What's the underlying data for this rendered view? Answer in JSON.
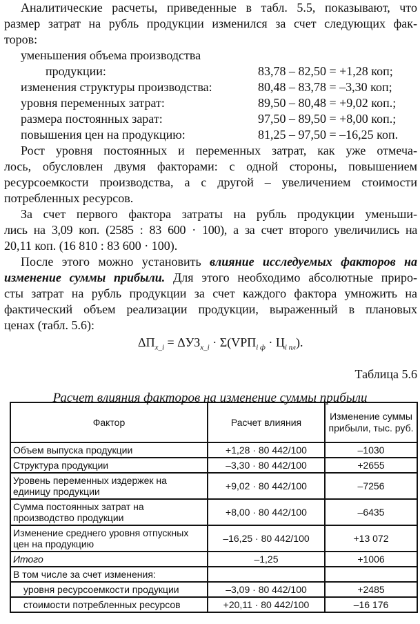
{
  "text": {
    "l1": "Аналитические расчеты, приведенные в табл. 5.5, показывают, что",
    "l2": "размер затрат на рубль продукции изменился за счет следующих фак-",
    "l3": "торов:",
    "factors": [
      {
        "label": "уменьшения объема производства",
        "label2": "продукции:",
        "calc": "83,78 – 82,50 = +1,28 коп;"
      },
      {
        "label": "изменения структуры производства:",
        "calc": "80,48 – 83,78 = –3,30 коп;"
      },
      {
        "label": "уровня переменных затрат:",
        "calc": "89,50 – 80,48 = +9,02 коп.;"
      },
      {
        "label": "размера постоянных зарат:",
        "calc": "97,50 – 89,50 = +8,00 коп.;"
      },
      {
        "label": "повышения цен на продукцию:",
        "calc": "81,25 – 97,50 = –16,25 коп."
      }
    ],
    "l10": "Рост уровня постоянных и переменных затрат, как уже отмеча-",
    "l11": "лось, обусловлен двумя факторами: с одной стороны, повышением",
    "l12": "ресурсоемкости производства, а с другой – увеличением стоимости",
    "l13": "потребленных ресурсов.",
    "l14": "За счет первого фактора затраты на рубль продукции уменьши-",
    "l15": "лись на 3,09 коп. (2585 : 83 600 · 100), а за счет второго увеличились на",
    "l16": "20,11 коп. (16 810 : 83 600 · 100).",
    "l17a": "После этого можно установить ",
    "l17b": "влияние исследуемых факторов на",
    "l18a": "изменение суммы прибыли.",
    "l18b": " Для этого необходимо абсолютные приро-",
    "l19": "сты затрат на рубль продукции за счет каждого фактора умножить на",
    "l20": "фактический объем реализации продукции, выраженный в плановых",
    "l21": "ценах (табл. 5.6):"
  },
  "formula": {
    "lhs": "ΔП",
    "lhs_sub": "x_i",
    "eq": " = ΔУЗ",
    "rhs_sub": "x_i",
    "sum": " · Σ(VРП",
    "sub1": "i ф",
    "mid": " · Ц",
    "sub2": "i пл",
    "end": ")."
  },
  "table": {
    "number": "Таблица 5.6",
    "caption": "Расчет влияния факторов на изменение суммы прибыли",
    "headers": [
      "Фактор",
      "Расчет влияния",
      "Изменение суммы прибыли, тыс. руб."
    ],
    "rows": [
      [
        "Объем выпуска продукции",
        "+1,28 · 80 442/100",
        "–1030"
      ],
      [
        "Структура продукции",
        "–3,30 · 80  442/100",
        "+2655"
      ],
      [
        "Уровень переменных издержек на единицу продукции",
        "+9,02 · 80  442/100",
        "–7256"
      ],
      [
        "Сумма постоянных затрат на производство продукции",
        "+8,00 · 80  442/100",
        "–6435"
      ],
      [
        "Изменение среднего уровня отпускных цен на продукцию",
        "–16,25 · 80  442/100",
        "+13  072"
      ],
      [
        "Итого",
        "–1,25",
        "+1006"
      ],
      [
        "В том числе за счет изменения:",
        "",
        ""
      ],
      [
        "уровня ресурсоемкости продукции",
        "–3,09 · 80  442/100",
        "+2485"
      ],
      [
        "стоимости потребленных ресурсов",
        "+20,11 · 80  442/100",
        "–16  176"
      ]
    ]
  }
}
